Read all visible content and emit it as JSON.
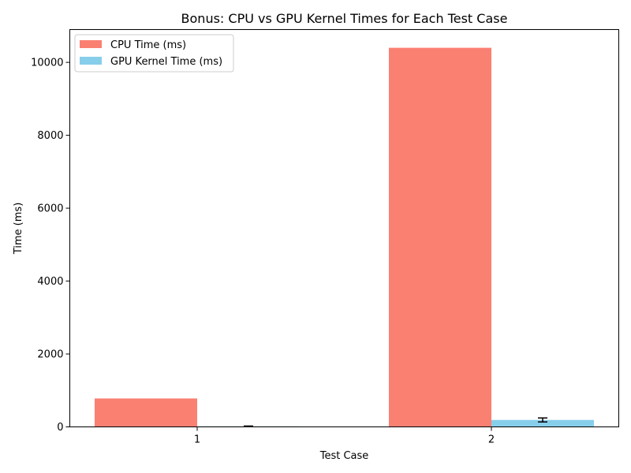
{
  "chart_data": {
    "type": "bar",
    "title": "Bonus: CPU vs GPU Kernel Times for Each Test Case",
    "xlabel": "Test Case",
    "ylabel": "Time (ms)",
    "categories": [
      "1",
      "2"
    ],
    "ylim": [
      0,
      10900
    ],
    "yticks": [
      0,
      2000,
      4000,
      6000,
      8000,
      10000
    ],
    "legend_position": "upper-left",
    "grid": false,
    "series": [
      {
        "name": "CPU Time (ms)",
        "color": "#fa8072",
        "values": [
          780,
          10400
        ],
        "errors": [
          null,
          null
        ]
      },
      {
        "name": "GPU Kernel Time (ms)",
        "color": "#87ceeb",
        "values": [
          15,
          190
        ],
        "errors": [
          8,
          55
        ]
      }
    ]
  }
}
